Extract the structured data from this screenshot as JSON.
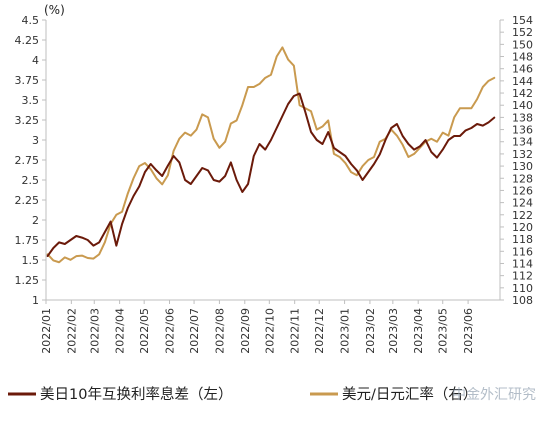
{
  "chart_data": {
    "type": "line",
    "ylabel_left": "(%)",
    "ylim_left": [
      1,
      4.5
    ],
    "ylim_right": [
      108,
      154
    ],
    "y_ticks_left": [
      "1",
      "1.25",
      "1.5",
      "1.75",
      "2",
      "2.25",
      "2.5",
      "2.75",
      "3",
      "3.25",
      "3.5",
      "3.75",
      "4",
      "4.25",
      "4.5"
    ],
    "y_ticks_right": [
      "108",
      "110",
      "112",
      "114",
      "116",
      "118",
      "120",
      "122",
      "124",
      "126",
      "128",
      "130",
      "132",
      "134",
      "136",
      "138",
      "140",
      "142",
      "144",
      "146",
      "148",
      "150",
      "152",
      "154"
    ],
    "x_ticks": [
      "2022/01",
      "2022/02",
      "2022/03",
      "2022/04",
      "2022/05",
      "2022/06",
      "2022/07",
      "2022/08",
      "2022/09",
      "2022/10",
      "2022/11",
      "2022/12",
      "2023/01",
      "2023/02",
      "2023/03",
      "2023/04",
      "2023/05",
      "2023/06"
    ],
    "x_start": "2022-01-01",
    "x_end": "2023-07-10",
    "grid": false,
    "legend_position": "bottom",
    "series": [
      {
        "name": "美日10年互换利率息差（左）",
        "axis": "left",
        "color": "#6b1a0a",
        "x": [
          "2022-01-03",
          "2022-01-10",
          "2022-01-17",
          "2022-01-24",
          "2022-01-31",
          "2022-02-07",
          "2022-02-14",
          "2022-02-21",
          "2022-02-28",
          "2022-03-07",
          "2022-03-14",
          "2022-03-21",
          "2022-03-28",
          "2022-04-04",
          "2022-04-11",
          "2022-04-18",
          "2022-04-25",
          "2022-05-02",
          "2022-05-09",
          "2022-05-16",
          "2022-05-23",
          "2022-05-30",
          "2022-06-06",
          "2022-06-13",
          "2022-06-20",
          "2022-06-27",
          "2022-07-04",
          "2022-07-11",
          "2022-07-18",
          "2022-07-25",
          "2022-08-01",
          "2022-08-08",
          "2022-08-15",
          "2022-08-22",
          "2022-08-29",
          "2022-09-05",
          "2022-09-12",
          "2022-09-19",
          "2022-09-26",
          "2022-10-03",
          "2022-10-10",
          "2022-10-17",
          "2022-10-24",
          "2022-10-31",
          "2022-11-07",
          "2022-11-14",
          "2022-11-21",
          "2022-11-28",
          "2022-12-05",
          "2022-12-12",
          "2022-12-19",
          "2022-12-26",
          "2023-01-02",
          "2023-01-09",
          "2023-01-16",
          "2023-01-23",
          "2023-01-30",
          "2023-02-06",
          "2023-02-13",
          "2023-02-20",
          "2023-02-27",
          "2023-03-06",
          "2023-03-13",
          "2023-03-20",
          "2023-03-27",
          "2023-04-03",
          "2023-04-10",
          "2023-04-17",
          "2023-04-24",
          "2023-05-01",
          "2023-05-08",
          "2023-05-15",
          "2023-05-22",
          "2023-05-29",
          "2023-06-05",
          "2023-06-12",
          "2023-06-19",
          "2023-06-26",
          "2023-07-03"
        ],
        "values": [
          1.55,
          1.65,
          1.72,
          1.7,
          1.75,
          1.8,
          1.78,
          1.75,
          1.68,
          1.72,
          1.85,
          1.98,
          1.68,
          1.95,
          2.15,
          2.3,
          2.42,
          2.6,
          2.7,
          2.62,
          2.55,
          2.68,
          2.8,
          2.72,
          2.5,
          2.45,
          2.55,
          2.65,
          2.62,
          2.5,
          2.48,
          2.55,
          2.72,
          2.5,
          2.35,
          2.45,
          2.8,
          2.95,
          2.88,
          3.0,
          3.15,
          3.3,
          3.45,
          3.55,
          3.58,
          3.35,
          3.1,
          3.0,
          2.95,
          3.1,
          2.9,
          2.85,
          2.8,
          2.7,
          2.62,
          2.5,
          2.6,
          2.7,
          2.82,
          3.0,
          3.15,
          3.2,
          3.05,
          2.95,
          2.88,
          2.92,
          3.0,
          2.85,
          2.78,
          2.88,
          3.0,
          3.05,
          3.05,
          3.12,
          3.15,
          3.2,
          3.18,
          3.22,
          3.28
        ]
      },
      {
        "name": "美元/日元汇率（右）",
        "axis": "right",
        "color": "#c99a4f",
        "x": [
          "2022-01-03",
          "2022-01-10",
          "2022-01-17",
          "2022-01-24",
          "2022-01-31",
          "2022-02-07",
          "2022-02-14",
          "2022-02-21",
          "2022-02-28",
          "2022-03-07",
          "2022-03-14",
          "2022-03-21",
          "2022-03-28",
          "2022-04-04",
          "2022-04-11",
          "2022-04-18",
          "2022-04-25",
          "2022-05-02",
          "2022-05-09",
          "2022-05-16",
          "2022-05-23",
          "2022-05-30",
          "2022-06-06",
          "2022-06-13",
          "2022-06-20",
          "2022-06-27",
          "2022-07-04",
          "2022-07-11",
          "2022-07-18",
          "2022-07-25",
          "2022-08-01",
          "2022-08-08",
          "2022-08-15",
          "2022-08-22",
          "2022-08-29",
          "2022-09-05",
          "2022-09-12",
          "2022-09-19",
          "2022-09-26",
          "2022-10-03",
          "2022-10-10",
          "2022-10-17",
          "2022-10-24",
          "2022-10-31",
          "2022-11-07",
          "2022-11-14",
          "2022-11-21",
          "2022-11-28",
          "2022-12-05",
          "2022-12-12",
          "2022-12-19",
          "2022-12-26",
          "2023-01-02",
          "2023-01-09",
          "2023-01-16",
          "2023-01-23",
          "2023-01-30",
          "2023-02-06",
          "2023-02-13",
          "2023-02-20",
          "2023-02-27",
          "2023-03-06",
          "2023-03-13",
          "2023-03-20",
          "2023-03-27",
          "2023-04-03",
          "2023-04-10",
          "2023-04-17",
          "2023-04-24",
          "2023-05-01",
          "2023-05-08",
          "2023-05-15",
          "2023-05-22",
          "2023-05-29",
          "2023-06-05",
          "2023-06-12",
          "2023-06-19",
          "2023-06-26",
          "2023-07-03"
        ],
        "values": [
          115.5,
          114.5,
          114.2,
          115.0,
          114.6,
          115.2,
          115.3,
          114.9,
          114.8,
          115.5,
          117.5,
          120.5,
          122.0,
          122.5,
          125.5,
          128.0,
          130.0,
          130.5,
          129.5,
          128.0,
          127.0,
          128.5,
          132.5,
          134.5,
          135.5,
          135.0,
          136.0,
          138.5,
          138.0,
          134.5,
          133.0,
          134.0,
          137.0,
          137.5,
          140.0,
          143.0,
          143.0,
          143.5,
          144.5,
          145.0,
          148.0,
          149.5,
          147.5,
          146.5,
          140.0,
          139.5,
          139.0,
          136.0,
          136.5,
          137.5,
          132.0,
          131.5,
          130.5,
          129.0,
          128.5,
          130.0,
          131.0,
          131.5,
          134.0,
          134.5,
          136.0,
          135.0,
          133.5,
          131.5,
          132.0,
          133.0,
          134.0,
          134.5,
          134.0,
          135.5,
          135.0,
          138.0,
          139.5,
          139.5,
          139.5,
          141.0,
          143.0,
          144.0,
          144.5
        ]
      }
    ]
  },
  "watermark": "中金外汇研究"
}
